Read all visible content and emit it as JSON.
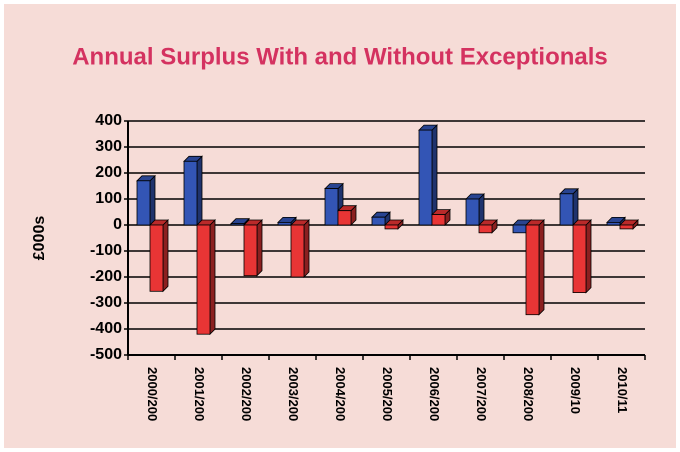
{
  "chart_data": {
    "type": "bar3d",
    "title": "Annual Surplus With and Without Exceptionals",
    "y_label": "£000s",
    "categories": [
      "2000/200",
      "2001/200",
      "2002/200",
      "2003/200",
      "2004/200",
      "2005/200",
      "2006/200",
      "2007/200",
      "2008/200",
      "2009/10",
      "2010/11"
    ],
    "series": [
      {
        "color": "#3355b5",
        "values": [
          170,
          245,
          5,
          10,
          140,
          30,
          365,
          100,
          -30,
          120,
          10
        ]
      },
      {
        "color": "#e83535",
        "values": [
          -255,
          -420,
          -195,
          -200,
          55,
          -15,
          40,
          -30,
          -345,
          -260,
          -15
        ]
      }
    ],
    "ylim": [
      -500,
      400
    ],
    "yticks": [
      -500,
      -400,
      -300,
      -200,
      -100,
      0,
      100,
      200,
      300,
      400
    ],
    "grid": true
  }
}
